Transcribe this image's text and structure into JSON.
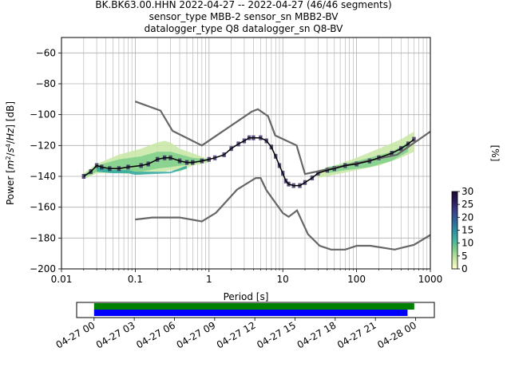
{
  "chart_data": {
    "type": "heatmap",
    "title_lines": [
      "BK.BK63.00.HHN   2022-04-27 -- 2022-04-27  (46/46 segments)",
      "sensor_type MBB-2 sensor_sn MBB2-BV",
      "datalogger_type Q8 datalogger_sn Q8-BV"
    ],
    "xlabel": "Period [s]",
    "ylabel_parts": [
      "Power [",
      "m",
      "2",
      "/",
      "s",
      "4",
      "/",
      "Hz",
      "] [dB]"
    ],
    "x_scale": "log",
    "xlim": [
      0.01,
      1000
    ],
    "ylim": [
      -200,
      -50
    ],
    "grid": true,
    "x_ticks": [
      {
        "value": 0.01,
        "label": "0.01"
      },
      {
        "value": 0.1,
        "label": "0.1"
      },
      {
        "value": 1,
        "label": "1"
      },
      {
        "value": 10,
        "label": "10"
      },
      {
        "value": 100,
        "label": "100"
      },
      {
        "value": 1000,
        "label": "1000"
      }
    ],
    "y_ticks": [
      {
        "value": -60,
        "label": "−60"
      },
      {
        "value": -80,
        "label": "−80"
      },
      {
        "value": -100,
        "label": "−100"
      },
      {
        "value": -120,
        "label": "−120"
      },
      {
        "value": -140,
        "label": "−140"
      },
      {
        "value": -160,
        "label": "−160"
      },
      {
        "value": -180,
        "label": "−180"
      },
      {
        "value": -200,
        "label": "−200"
      }
    ],
    "noise_models": [
      {
        "name": "NHNM",
        "color": "#666666",
        "points": [
          [
            0.1,
            -91.5
          ],
          [
            0.22,
            -97.4
          ],
          [
            0.32,
            -110.5
          ],
          [
            0.8,
            -120
          ],
          [
            3.8,
            -98
          ],
          [
            4.6,
            -96.5
          ],
          [
            6.3,
            -101
          ],
          [
            7.9,
            -113.5
          ],
          [
            15.4,
            -120
          ],
          [
            20,
            -138.5
          ],
          [
            354.8,
            -126
          ],
          [
            1000,
            -111
          ]
        ]
      },
      {
        "name": "NLNM",
        "color": "#666666",
        "points": [
          [
            0.1,
            -168
          ],
          [
            0.17,
            -166.7
          ],
          [
            0.4,
            -166.7
          ],
          [
            0.8,
            -169.2
          ],
          [
            1.24,
            -163.7
          ],
          [
            2.4,
            -148.6
          ],
          [
            4.3,
            -141.1
          ],
          [
            5,
            -141.1
          ],
          [
            6,
            -149
          ],
          [
            10,
            -163.8
          ],
          [
            12,
            -166.2
          ],
          [
            15.6,
            -162.1
          ],
          [
            21.9,
            -177.5
          ],
          [
            31.6,
            -185
          ],
          [
            45,
            -187.5
          ],
          [
            70,
            -187.5
          ],
          [
            101,
            -185
          ],
          [
            154,
            -185
          ],
          [
            328,
            -187.5
          ],
          [
            600,
            -184.4
          ],
          [
            1000,
            -178
          ]
        ]
      }
    ],
    "mean_series": {
      "name": "mean",
      "color": "#000000",
      "x": [
        0.02,
        0.025,
        0.03,
        0.035,
        0.045,
        0.06,
        0.08,
        0.12,
        0.15,
        0.2,
        0.25,
        0.3,
        0.4,
        0.5,
        0.6,
        0.8,
        1.0,
        1.2,
        1.6,
        2.0,
        2.5,
        3.0,
        3.5,
        4.0,
        5.0,
        6.0,
        7.0,
        8.0,
        9.0,
        10.0,
        11.0,
        12.0,
        14.0,
        17.0,
        20.0,
        25.0,
        30.0,
        40.0,
        50.0,
        70.0,
        100.0,
        150.0,
        200.0,
        300.0,
        400.0,
        500.0,
        600.0
      ],
      "y": [
        -140,
        -137,
        -133,
        -134,
        -135,
        -135,
        -134,
        -133,
        -132,
        -129,
        -128,
        -128,
        -130,
        -131,
        -131,
        -130,
        -129,
        -128,
        -126,
        -122,
        -119,
        -117,
        -115,
        -115,
        -115,
        -117,
        -121,
        -127,
        -133,
        -138,
        -143,
        -145,
        -146,
        -146,
        -144,
        -141,
        -138,
        -136,
        -135,
        -133,
        -132,
        -130,
        -128,
        -125,
        -122,
        -119,
        -116
      ]
    },
    "density_bands": [
      {
        "x": [
          0.02,
          0.03,
          0.06,
          0.12,
          0.2,
          0.25,
          0.3,
          0.4,
          0.6,
          1.0
        ],
        "upper": [
          -138,
          -132,
          -126,
          -122,
          -118,
          -117,
          -118,
          -122,
          -125,
          -129
        ],
        "lower": [
          -142,
          -138,
          -138,
          -139,
          -137,
          -137,
          -136,
          -137,
          -133,
          -131
        ],
        "color": "#c7e8a3"
      },
      {
        "x": [
          0.02,
          0.03,
          0.06,
          0.12,
          0.2,
          0.3,
          0.6,
          1.0
        ],
        "upper": [
          -139,
          -133,
          -129,
          -127,
          -124,
          -124,
          -128,
          -129
        ],
        "lower": [
          -141,
          -137,
          -137,
          -137,
          -135,
          -134,
          -132,
          -130
        ],
        "color": "#7fcf8b"
      },
      {
        "x": [
          0.03,
          0.05,
          0.08,
          0.1,
          0.3,
          0.5
        ],
        "upper": [
          -134,
          -136,
          -136,
          -137,
          -137,
          -133
        ],
        "lower": [
          -137,
          -138,
          -138,
          -139,
          -138,
          -135
        ],
        "color": "#2ea7a0"
      },
      {
        "x": [
          30.0,
          50.0,
          100.0,
          200.0,
          400.0,
          600.0
        ],
        "upper": [
          -136,
          -133,
          -128,
          -122,
          -116,
          -111
        ],
        "lower": [
          -141,
          -139,
          -136,
          -133,
          -128,
          -124
        ],
        "color": "#c7e8a3"
      },
      {
        "x": [
          40.0,
          70.0,
          150.0,
          300.0,
          500.0
        ],
        "upper": [
          -134,
          -132,
          -128,
          -124,
          -118
        ],
        "lower": [
          -138,
          -136,
          -134,
          -130,
          -124
        ],
        "color": "#7fcf8b"
      }
    ],
    "colorbar": {
      "label": "[%]",
      "min": 0,
      "max": 30,
      "ticks": [
        {
          "value": 0,
          "label": "0"
        },
        {
          "value": 5,
          "label": "5"
        },
        {
          "value": 10,
          "label": "10"
        },
        {
          "value": 15,
          "label": "15"
        },
        {
          "value": 20,
          "label": "20"
        },
        {
          "value": 25,
          "label": "25"
        },
        {
          "value": 30,
          "label": "30"
        }
      ],
      "colors": [
        "#ffffcc",
        "#c7e8a3",
        "#7fcf8b",
        "#41b6a0",
        "#2c8fa3",
        "#31649b",
        "#3b3d8a",
        "#2b1a5a",
        "#1c0a2e"
      ]
    },
    "coverage": {
      "xlim_hours": [
        -1.3,
        25.4
      ],
      "ticks": [
        {
          "hour": 0,
          "label": "04-27 00"
        },
        {
          "hour": 3,
          "label": "04-27 03"
        },
        {
          "hour": 6,
          "label": "04-27 06"
        },
        {
          "hour": 9,
          "label": "04-27 09"
        },
        {
          "hour": 12,
          "label": "04-27 12"
        },
        {
          "hour": 15,
          "label": "04-27 15"
        },
        {
          "hour": 18,
          "label": "04-27 18"
        },
        {
          "hour": 21,
          "label": "04-27 21"
        },
        {
          "hour": 24,
          "label": "04-28 00"
        }
      ],
      "bars": [
        {
          "name": "data coverage",
          "start_hour": 0,
          "end_hour": 23.9,
          "color": "#008000"
        },
        {
          "name": "psd coverage",
          "start_hour": 0,
          "end_hour": 23.4,
          "color": "#0000ff"
        }
      ]
    }
  }
}
